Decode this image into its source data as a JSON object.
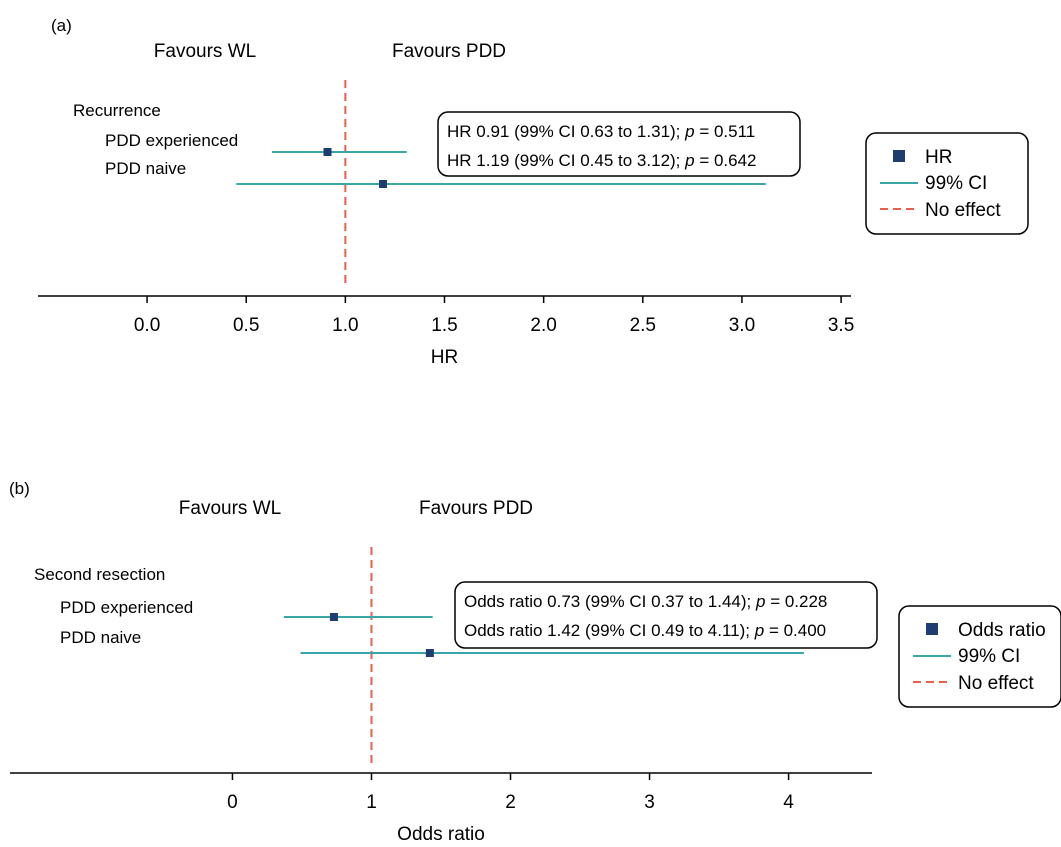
{
  "chart_data": [
    {
      "panel_label": "(a)",
      "type": "forest",
      "favours_left": "Favours WL",
      "favours_right": "Favours PDD",
      "group_label": "Recurrence",
      "xlabel": "HR",
      "xlim": [
        -0.55,
        3.55
      ],
      "ticks": [
        {
          "value": 0,
          "label": "0.0"
        },
        {
          "value": 0.5,
          "label": "0.5"
        },
        {
          "value": 1,
          "label": "1.0"
        },
        {
          "value": 1.5,
          "label": "1.5"
        },
        {
          "value": 2,
          "label": "2.0"
        },
        {
          "value": 2.5,
          "label": "2.5"
        },
        {
          "value": 3,
          "label": "3.0"
        },
        {
          "value": 3.5,
          "label": "3.5"
        }
      ],
      "null_value": 1,
      "rows": [
        {
          "label": "PDD experienced",
          "estimate": 0.91,
          "ci_low": 0.63,
          "ci_high": 1.31,
          "annotation_prefix": "HR 0.91 (99% CI 0.63 to 1.31); ",
          "p_label": "p",
          "p_value_text": " = 0.511"
        },
        {
          "label": "PDD naive",
          "estimate": 1.19,
          "ci_low": 0.45,
          "ci_high": 3.12,
          "annotation_prefix": "HR 1.19 (99% CI 0.45 to 3.12); ",
          "p_label": "p",
          "p_value_text": " = 0.642"
        }
      ],
      "legend": {
        "estimate": "HR",
        "ci": "99% CI",
        "null": "No effect"
      },
      "colors": {
        "marker": "#1f3d73",
        "ci": "#3aa6a8",
        "null": "#e8604c"
      }
    },
    {
      "panel_label": "(b)",
      "type": "forest",
      "favours_left": "Favours WL",
      "favours_right": "Favours PDD",
      "group_label": "Second resection",
      "xlabel": "Odds ratio",
      "xlim": [
        -1.6,
        4.6
      ],
      "ticks": [
        {
          "value": 0,
          "label": "0"
        },
        {
          "value": 1,
          "label": "1"
        },
        {
          "value": 2,
          "label": "2"
        },
        {
          "value": 3,
          "label": "3"
        },
        {
          "value": 4,
          "label": "4"
        }
      ],
      "null_value": 1,
      "rows": [
        {
          "label": "PDD experienced",
          "estimate": 0.73,
          "ci_low": 0.37,
          "ci_high": 1.44,
          "annotation_prefix": "Odds ratio 0.73 (99% CI 0.37 to 1.44); ",
          "p_label": "p",
          "p_value_text": " = 0.228"
        },
        {
          "label": "PDD naive",
          "estimate": 1.42,
          "ci_low": 0.49,
          "ci_high": 4.11,
          "annotation_prefix": "Odds ratio 1.42 (99% CI 0.49 to 4.11); ",
          "p_label": "p",
          "p_value_text": " = 0.400"
        }
      ],
      "legend": {
        "estimate": "Odds ratio",
        "ci": "99% CI",
        "null": "No effect"
      },
      "colors": {
        "marker": "#1f3d73",
        "ci": "#3aa6a8",
        "null": "#e8604c"
      }
    }
  ]
}
